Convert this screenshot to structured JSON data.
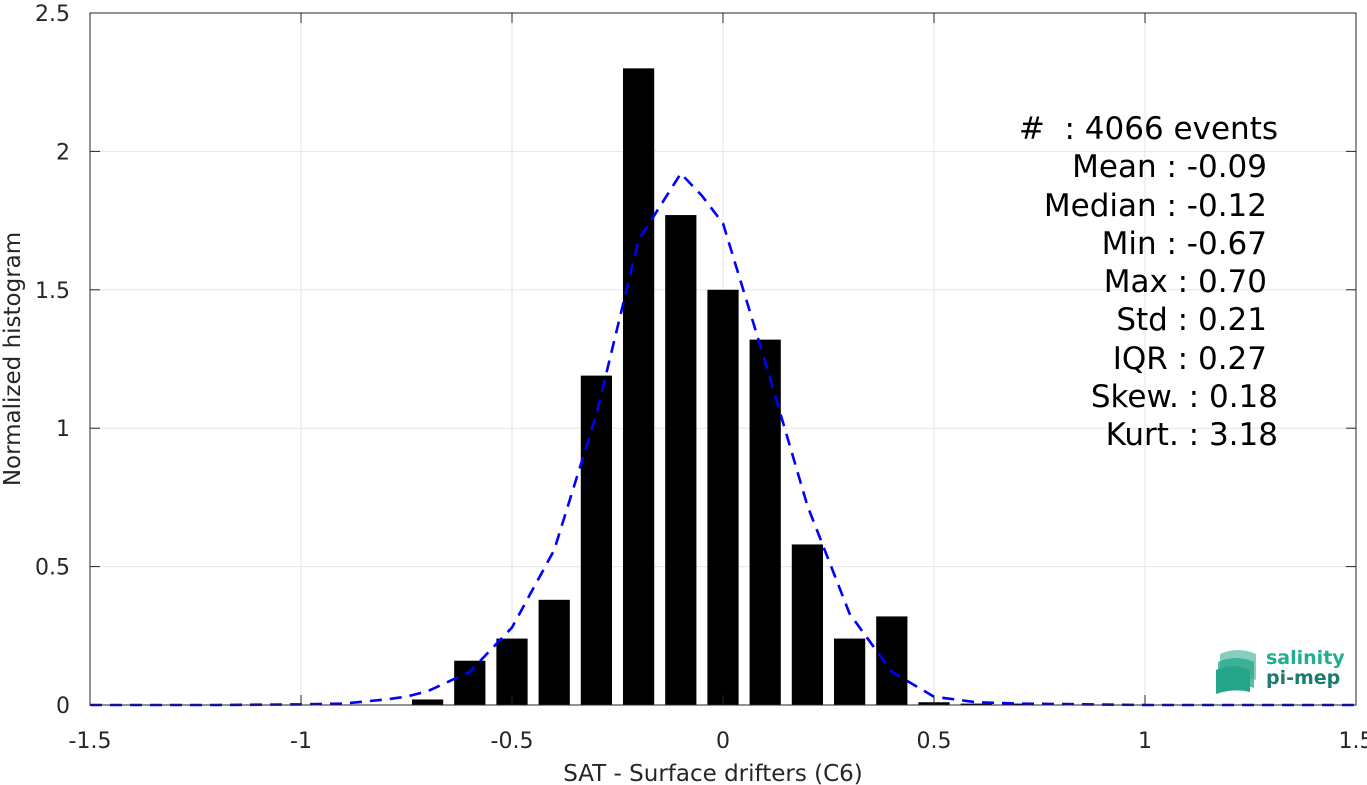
{
  "chart_data": {
    "type": "bar",
    "xlabel": "SAT - Surface drifters (C6)",
    "ylabel": "Normalized histogram",
    "xlim": [
      -1.5,
      1.5
    ],
    "ylim": [
      0,
      2.5
    ],
    "xticks": [
      -1.5,
      -1,
      -0.5,
      0,
      0.5,
      1,
      1.5
    ],
    "xtick_labels": [
      "-1.5",
      "-1",
      "-0.5",
      "0",
      "0.5",
      "1",
      "1.5"
    ],
    "yticks": [
      0,
      0.5,
      1,
      1.5,
      2,
      2.5
    ],
    "ytick_labels": [
      "0",
      "0.5",
      "1",
      "1.5",
      "2",
      "2.5"
    ],
    "grid": true,
    "bars": {
      "color": "#000000",
      "x": [
        -0.7,
        -0.6,
        -0.5,
        -0.4,
        -0.3,
        -0.2,
        -0.1,
        0.0,
        0.1,
        0.2,
        0.3,
        0.4,
        0.5,
        0.6,
        0.7
      ],
      "values": [
        0.02,
        0.16,
        0.24,
        0.38,
        1.19,
        2.3,
        1.77,
        1.5,
        1.32,
        0.58,
        0.24,
        0.32,
        0.01,
        0.005,
        0.005
      ]
    },
    "fit_line": {
      "style": "dashed",
      "color": "#0000ff",
      "x": [
        -1.5,
        -1.2,
        -1.0,
        -0.9,
        -0.8,
        -0.75,
        -0.7,
        -0.6,
        -0.5,
        -0.4,
        -0.3,
        -0.2,
        -0.15,
        -0.1,
        -0.05,
        0.0,
        0.1,
        0.2,
        0.3,
        0.4,
        0.5,
        0.6,
        0.7,
        1.0,
        1.5
      ],
      "y": [
        0,
        0,
        0.002,
        0.005,
        0.02,
        0.03,
        0.05,
        0.12,
        0.28,
        0.56,
        1.05,
        1.68,
        1.8,
        1.92,
        1.84,
        1.74,
        1.24,
        0.72,
        0.33,
        0.12,
        0.03,
        0.01,
        0.005,
        0,
        0
      ]
    },
    "annotation_lines": [
      "#  : 4066 events",
      "Mean : -0.09",
      "Median : -0.12",
      "Min : -0.67",
      "Max : 0.70",
      "Std : 0.21",
      "IQR : 0.27",
      "Skew. : 0.18",
      "Kurt. : 3.18"
    ]
  },
  "logo": {
    "line1": "salinity",
    "line2": "pi-mep",
    "colors": {
      "line1": "#1fae8e",
      "line2": "#1a7d6b",
      "mark": "#25a68a"
    }
  }
}
